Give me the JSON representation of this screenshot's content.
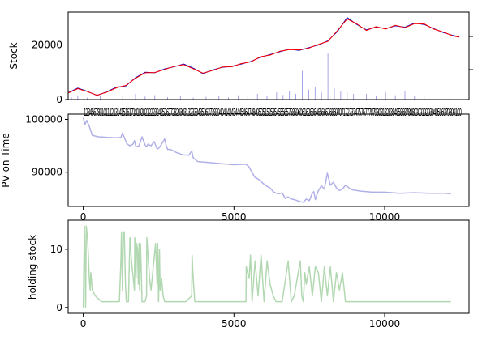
{
  "chart_data": [
    {
      "type": "line",
      "panel": "stock-price",
      "ylabel": "Stock",
      "ylim": [
        0,
        32000
      ],
      "yticks": [
        0,
        20000
      ],
      "xlim": [
        0,
        12500
      ],
      "x_tick_labels_text": "123456789101112131415161718192021222324252627282930313233343536373839404142434445464748495051525354555657585960616263646566676869707172737475767778798081828384858687888990919293949596979899100",
      "grid": false,
      "series": [
        {
          "color": "#0000cc",
          "x": [
            0,
            300,
            600,
            900,
            1200,
            1500,
            1800,
            2100,
            2400,
            2700,
            3000,
            3300,
            3600,
            3900,
            4200,
            4500,
            4800,
            5100,
            5400,
            5700,
            6000,
            6300,
            6600,
            6900,
            7200,
            7500,
            7800,
            8100,
            8400,
            8700,
            9000,
            9300,
            9600,
            9900,
            10200,
            10500,
            10800,
            11100,
            11400,
            11700,
            12000,
            12200
          ],
          "values": [
            2500,
            4200,
            3000,
            1500,
            2800,
            4500,
            5000,
            8000,
            10000,
            9800,
            11200,
            12000,
            13000,
            11500,
            9500,
            10800,
            11800,
            12200,
            13000,
            14000,
            15500,
            16500,
            17500,
            18500,
            18000,
            19000,
            20000,
            21500,
            25000,
            30000,
            27500,
            25500,
            26500,
            26000,
            27000,
            26500,
            28000,
            27500,
            26000,
            24500,
            23500,
            23000
          ]
        },
        {
          "color": "#ff0000",
          "x": [
            0,
            300,
            600,
            900,
            1200,
            1500,
            1800,
            2100,
            2400,
            2700,
            3000,
            3300,
            3600,
            3900,
            4200,
            4500,
            4800,
            5100,
            5400,
            5700,
            6000,
            6300,
            6600,
            6900,
            7200,
            7500,
            7800,
            8100,
            8400,
            8700,
            9000,
            9300,
            9600,
            9900,
            10200,
            10500,
            10800,
            11100,
            11400,
            11700,
            12000,
            12200
          ],
          "values": [
            2400,
            4000,
            2900,
            1600,
            2700,
            4300,
            5200,
            7800,
            9800,
            9900,
            11000,
            12100,
            12800,
            11300,
            9700,
            10600,
            11900,
            12000,
            13200,
            13800,
            15700,
            16300,
            17700,
            18300,
            18200,
            18800,
            20200,
            21300,
            25300,
            29500,
            27700,
            25300,
            26700,
            25800,
            27200,
            26300,
            27800,
            27700,
            25800,
            24700,
            23300,
            22800
          ]
        }
      ],
      "volume": {
        "color": "#8f8fe0",
        "x": [
          100,
          300,
          600,
          1000,
          1300,
          1700,
          2100,
          2400,
          2700,
          3100,
          3500,
          3900,
          4300,
          4700,
          5000,
          5300,
          5600,
          5900,
          6200,
          6500,
          6700,
          6900,
          7100,
          7300,
          7500,
          7700,
          7900,
          8100,
          8300,
          8500,
          8700,
          8900,
          9100,
          9300,
          9600,
          9900,
          10200,
          10500,
          10800,
          11100,
          11500,
          11900
        ],
        "values": [
          900,
          1500,
          700,
          1200,
          1000,
          1500,
          2100,
          1100,
          1600,
          900,
          1300,
          700,
          1000,
          1400,
          800,
          1600,
          1100,
          2100,
          1300,
          2600,
          1700,
          3100,
          2100,
          10500,
          3600,
          4600,
          2600,
          16800,
          4100,
          3100,
          2600,
          2100,
          3600,
          2100,
          1500,
          2600,
          1600,
          3100,
          1300,
          1100,
          900,
          700
        ]
      }
    },
    {
      "type": "line",
      "panel": "pv-on-time",
      "ylabel": "PV on Time",
      "ylim": [
        83500,
        101000
      ],
      "yticks": [
        90000,
        100000
      ],
      "xlim": [
        -500,
        12800
      ],
      "xticks": [
        0,
        5000,
        10000
      ],
      "grid": false,
      "series": [
        {
          "color": "#b0b0e8",
          "x": [
            0,
            60,
            120,
            200,
            300,
            500,
            800,
            1100,
            1250,
            1300,
            1450,
            1550,
            1650,
            1700,
            1750,
            1850,
            1950,
            2050,
            2100,
            2150,
            2250,
            2350,
            2450,
            2500,
            2600,
            2700,
            2750,
            2800,
            2900,
            3100,
            3300,
            3500,
            3600,
            3650,
            3800,
            4200,
            4600,
            5000,
            5400,
            5500,
            5600,
            5700,
            5800,
            5900,
            6000,
            6100,
            6200,
            6300,
            6400,
            6500,
            6600,
            6700,
            6800,
            6900,
            7000,
            7100,
            7200,
            7300,
            7400,
            7500,
            7600,
            7650,
            7700,
            7800,
            7900,
            8000,
            8100,
            8200,
            8300,
            8400,
            8500,
            8600,
            8700,
            8900,
            9200,
            9600,
            10000,
            10500,
            11000,
            11500,
            12000,
            12200
          ],
          "values": [
            100300,
            99000,
            99800,
            98700,
            97000,
            96700,
            96600,
            96500,
            96600,
            97400,
            95400,
            95000,
            95300,
            96000,
            94800,
            95000,
            96700,
            95200,
            94800,
            95300,
            95000,
            95800,
            94400,
            94500,
            95300,
            96300,
            95100,
            94300,
            94300,
            93700,
            93300,
            93200,
            94000,
            92700,
            92000,
            91800,
            91600,
            91400,
            91500,
            91000,
            89900,
            89000,
            88700,
            88200,
            87700,
            87300,
            87000,
            86300,
            86000,
            85900,
            86100,
            85000,
            85300,
            84900,
            84800,
            84600,
            84400,
            84300,
            84900,
            84600,
            86000,
            86300,
            84800,
            86500,
            87400,
            86800,
            89800,
            87500,
            88100,
            87000,
            86500,
            86800,
            87500,
            86700,
            86400,
            86200,
            86200,
            86000,
            86100,
            86000,
            86000,
            85900
          ]
        }
      ]
    },
    {
      "type": "line",
      "panel": "holding-stock",
      "ylabel": "holding stock",
      "ylim": [
        -1,
        15
      ],
      "yticks": [
        0,
        10
      ],
      "xlim": [
        -500,
        12800
      ],
      "xticks": [
        0,
        5000,
        10000
      ],
      "grid": false,
      "series": [
        {
          "color": "#b2d8b2",
          "x": [
            0,
            40,
            80,
            100,
            140,
            170,
            200,
            230,
            250,
            300,
            400,
            600,
            900,
            1200,
            1250,
            1270,
            1300,
            1330,
            1360,
            1400,
            1430,
            1460,
            1500,
            1550,
            1600,
            1700,
            1710,
            1750,
            1770,
            1800,
            1830,
            1850,
            1870,
            1900,
            1930,
            1950,
            2000,
            2050,
            2100,
            2110,
            2150,
            2200,
            2250,
            2400,
            2450,
            2470,
            2500,
            2530,
            2550,
            2600,
            2650,
            2700,
            2800,
            2900,
            3000,
            3400,
            3600,
            3610,
            3650,
            3700,
            4000,
            4500,
            5000,
            5400,
            5410,
            5500,
            5550,
            5600,
            5700,
            5800,
            5900,
            6000,
            6100,
            6200,
            6300,
            6400,
            6600,
            6800,
            6900,
            7000,
            7100,
            7200,
            7250,
            7300,
            7350,
            7400,
            7500,
            7600,
            7700,
            7800,
            7900,
            8000,
            8100,
            8200,
            8300,
            8400,
            8500,
            8600,
            8700,
            8800,
            8900,
            9000,
            9500,
            10000,
            10500,
            11000,
            11500,
            12000,
            12200
          ],
          "values": [
            0,
            14,
            0,
            14,
            12,
            9,
            5,
            3,
            6,
            3,
            2,
            1,
            1,
            1,
            8,
            13,
            3,
            13,
            13,
            4,
            1,
            1,
            1,
            12,
            8,
            3,
            12,
            5,
            11,
            10,
            4,
            11,
            3,
            11,
            5,
            1,
            1,
            1,
            2,
            12,
            9,
            5,
            3,
            11,
            4,
            11,
            1,
            10,
            3,
            5,
            2,
            1,
            1,
            1,
            1,
            1,
            2,
            9,
            5,
            1,
            1,
            1,
            1,
            1,
            7,
            5,
            9,
            1,
            8,
            2,
            9,
            1,
            8,
            4,
            2,
            1,
            1,
            8,
            1,
            2,
            5,
            8,
            2,
            1,
            6,
            4,
            7,
            2,
            7,
            6,
            1,
            7,
            2,
            7,
            1,
            6,
            3,
            6,
            1,
            1,
            1,
            1,
            1,
            1,
            1,
            1,
            1,
            1,
            1
          ]
        }
      ]
    }
  ]
}
